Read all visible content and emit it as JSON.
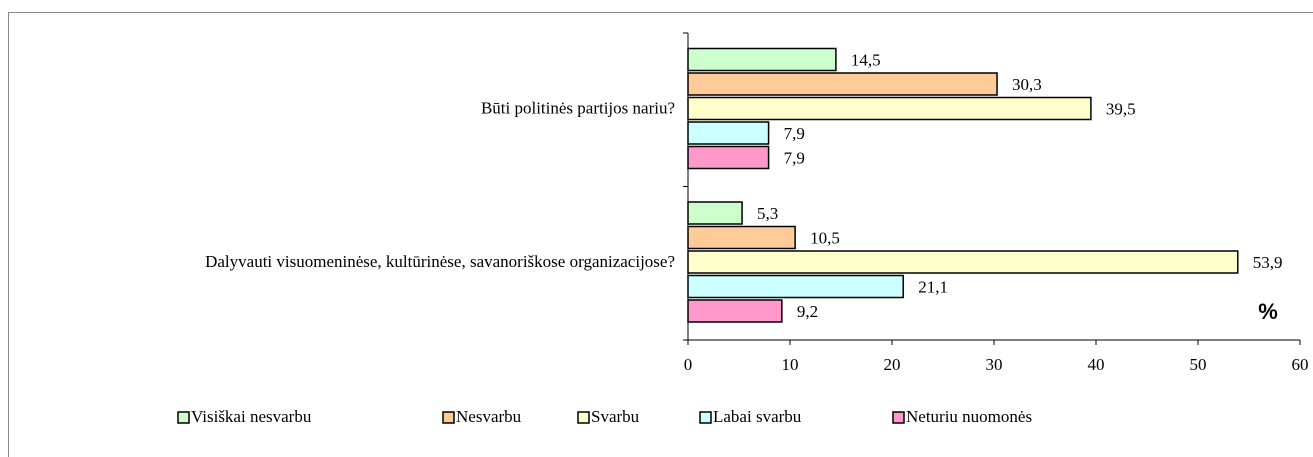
{
  "chart_data": {
    "type": "barh",
    "categories": [
      "Būti politinės partijos nariu?",
      "Dalyvauti visuomeninėse, kultūrinėse, savanoriškose organizacijose?"
    ],
    "series": [
      {
        "name": "Visiškai nesvarbu",
        "color": "#ccffcc",
        "values": [
          14.5,
          5.3
        ],
        "value_labels": [
          "14,5",
          "5,3"
        ]
      },
      {
        "name": "Nesvarbu",
        "color": "#ffcc99",
        "values": [
          30.3,
          10.5
        ],
        "value_labels": [
          "30,3",
          "10,5"
        ]
      },
      {
        "name": "Svarbu",
        "color": "#ffffcc",
        "values": [
          39.5,
          53.9
        ],
        "value_labels": [
          "39,5",
          "53,9"
        ]
      },
      {
        "name": "Labai svarbu",
        "color": "#ccffff",
        "values": [
          7.9,
          21.1
        ],
        "value_labels": [
          "7,9",
          "21,1"
        ]
      },
      {
        "name": "Neturiu nuomonės",
        "color": "#ff99cc",
        "values": [
          7.9,
          9.2
        ],
        "value_labels": [
          "7,9",
          "9,2"
        ]
      }
    ],
    "xlim": [
      0,
      60
    ],
    "xticks": [
      0,
      10,
      20,
      30,
      40,
      50,
      60
    ],
    "annotation": "%",
    "legend": "bottom"
  }
}
